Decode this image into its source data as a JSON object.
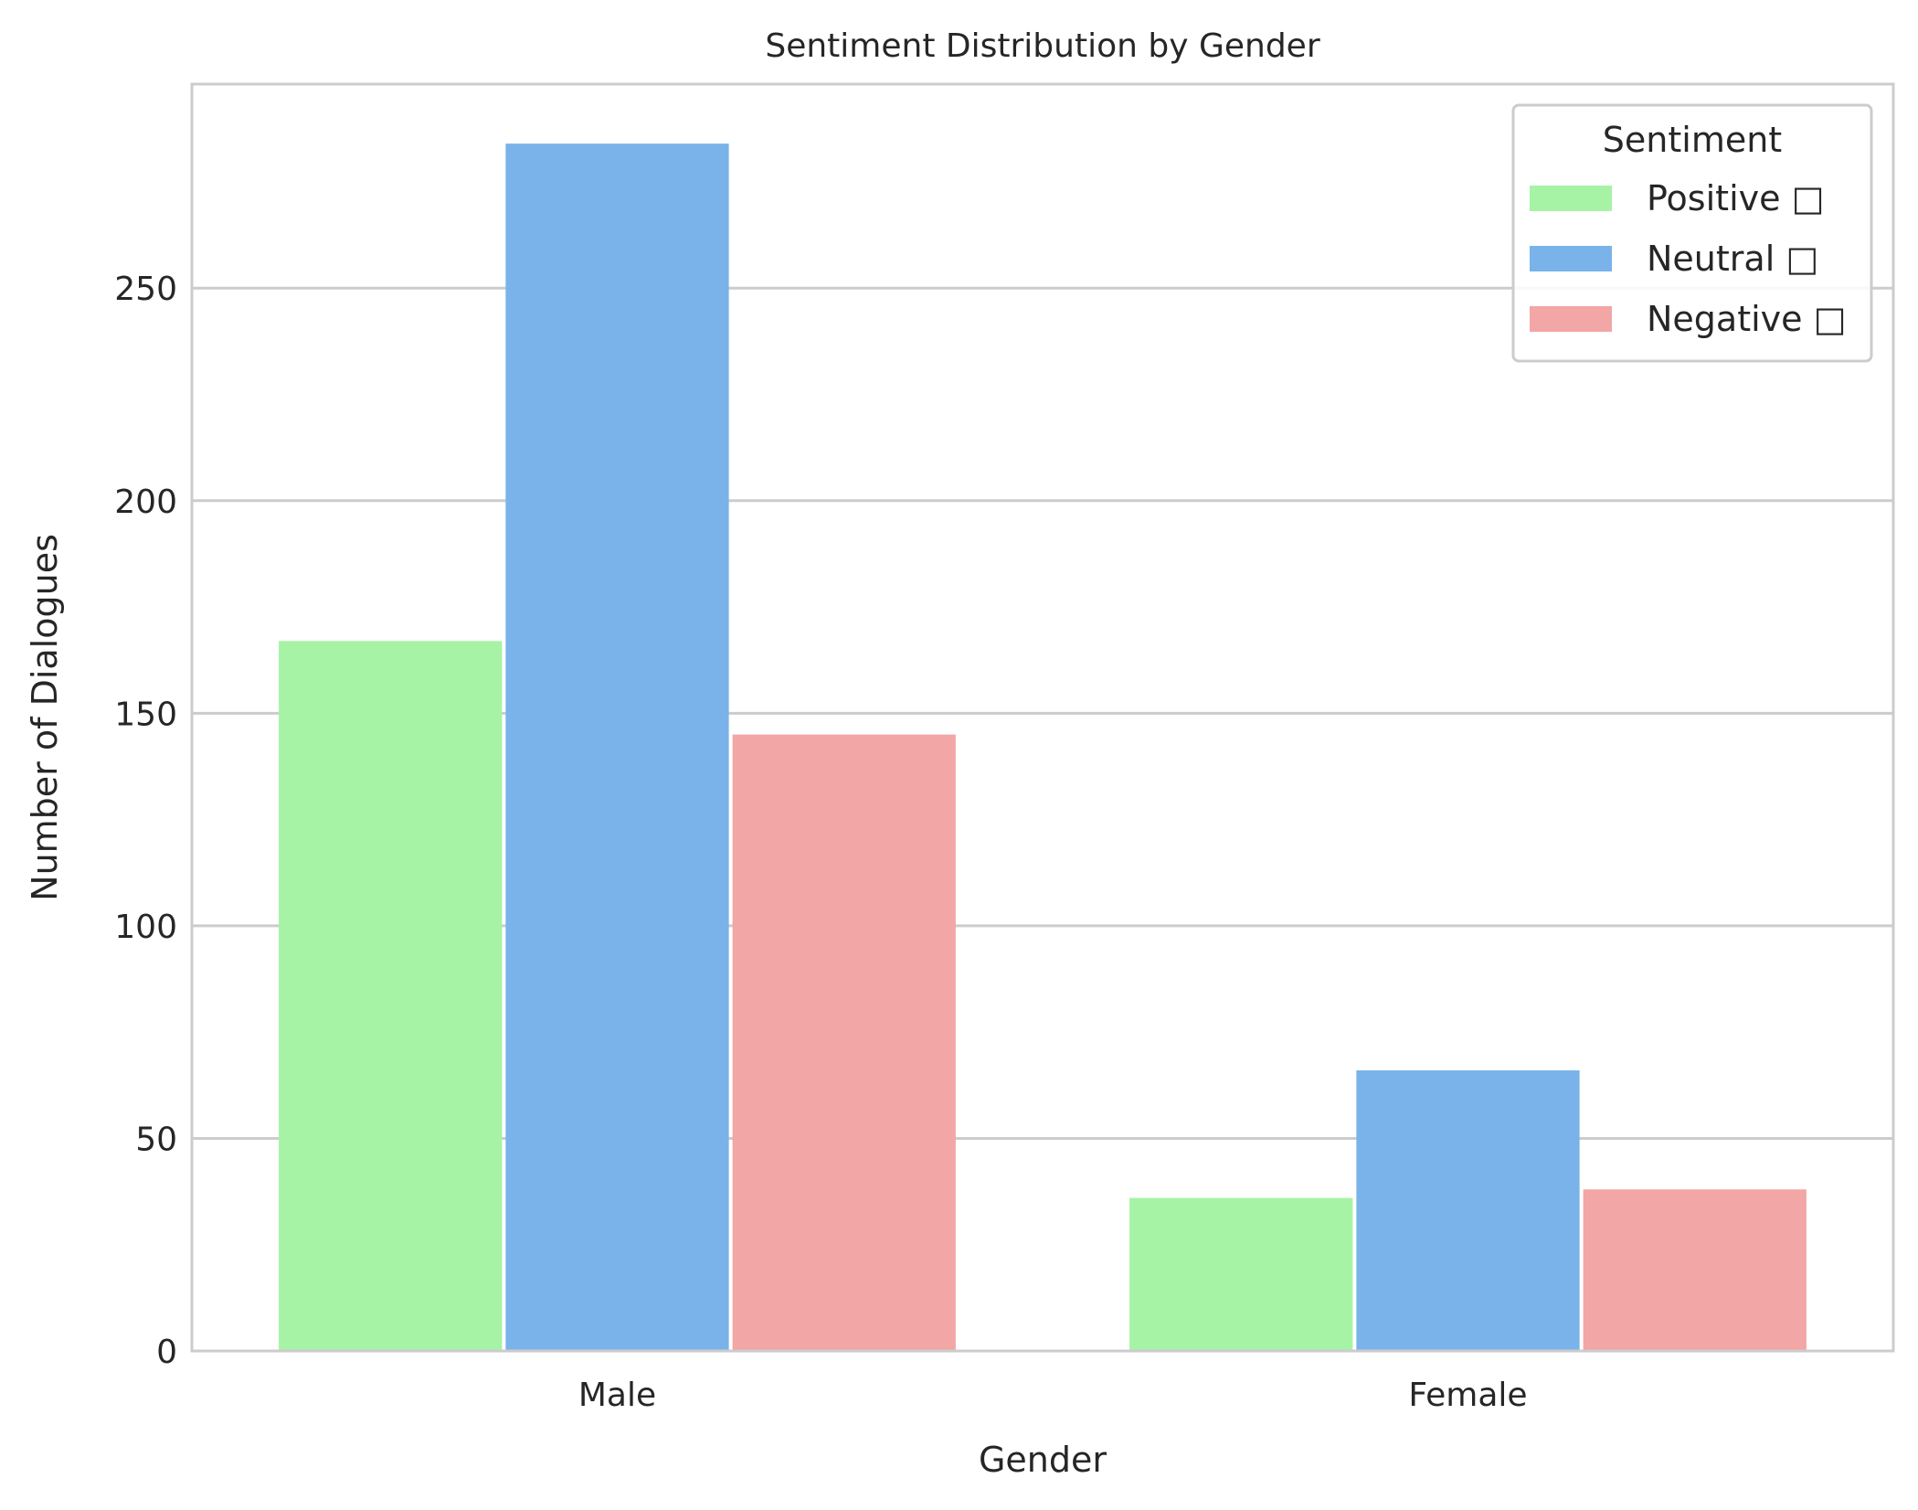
{
  "chart_data": {
    "type": "bar",
    "title": "Sentiment Distribution by Gender",
    "xlabel": "Gender",
    "ylabel": "Number of Dialogues",
    "categories": [
      "Male",
      "Female"
    ],
    "series": [
      {
        "name": "Positive □",
        "values": [
          167,
          36
        ],
        "color": "#a6f3a6"
      },
      {
        "name": "Neutral □",
        "values": [
          284,
          66
        ],
        "color": "#79b3ea"
      },
      {
        "name": "Negative □",
        "values": [
          145,
          38
        ],
        "color": "#f2a6a6"
      }
    ],
    "ylim": [
      0,
      298
    ],
    "yticks": [
      0,
      50,
      100,
      150,
      200,
      250
    ],
    "grid": true,
    "legend": {
      "title": "Sentiment",
      "placement": "top-right"
    }
  }
}
